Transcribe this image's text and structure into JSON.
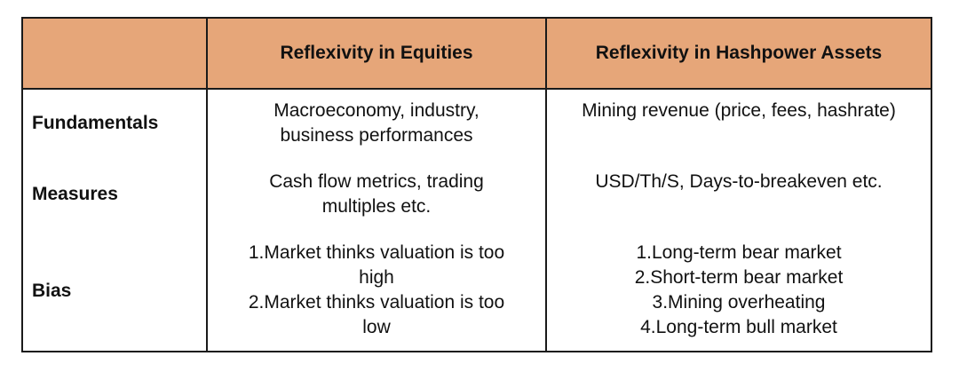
{
  "header": {
    "col1": "",
    "col2": "Reflexivity in Equities",
    "col3": "Reflexivity in Hashpower Assets"
  },
  "colors": {
    "header_bg": "#E6A679",
    "border": "#1A1A1A"
  },
  "rows": [
    {
      "label": "Fundamentals",
      "equities": "Macroeconomy, industry,\nbusiness performances",
      "hashpower": "Mining revenue (price, fees, hashrate)"
    },
    {
      "label": "Measures",
      "equities": "Cash flow metrics, trading\nmultiples etc.",
      "hashpower": "USD/Th/S, Days-to-breakeven etc."
    },
    {
      "label": "Bias",
      "equities": "1.Market thinks valuation is too\nhigh\n2.Market thinks valuation is too\nlow",
      "hashpower": "1.Long-term bear market\n2.Short-term bear market\n3.Mining overheating\n4.Long-term bull market"
    }
  ]
}
